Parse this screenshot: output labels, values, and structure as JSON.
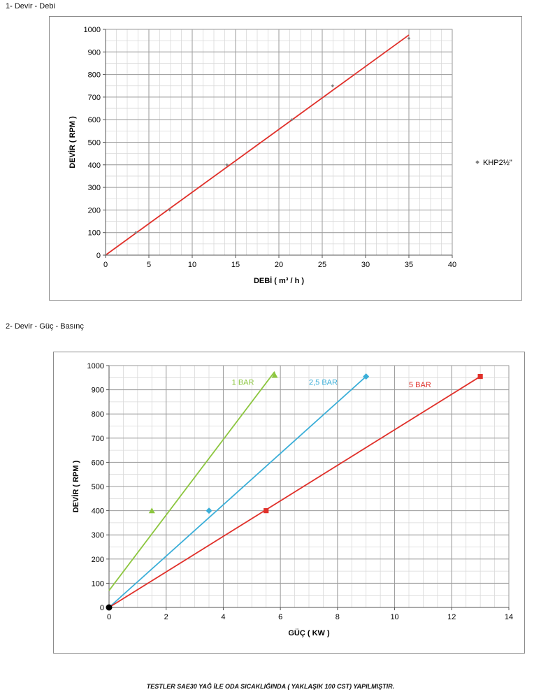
{
  "sections": {
    "s1": "1- Devir - Debi",
    "s2": "2- Devir - Güç - Basınç"
  },
  "footer": "TESTLER SAE30 YAĞ İLE ODA SICAKLIĞINDA ( YAKLAŞIK 100 CST) YAPILMIŞTIR.",
  "chart_data": [
    {
      "type": "scatter",
      "title": "",
      "xlabel": "DEBİ ( m³ / h )",
      "ylabel": "DEVİR ( RPM )",
      "xlim": [
        0,
        40
      ],
      "ylim": [
        0,
        1000
      ],
      "xticks": [
        0,
        5,
        10,
        15,
        20,
        25,
        30,
        35,
        40
      ],
      "yticks": [
        0,
        100,
        200,
        300,
        400,
        500,
        600,
        700,
        800,
        900,
        1000
      ],
      "grid": true,
      "legend": "right",
      "series": [
        {
          "name": "KHP2½\"",
          "color": "#7f7f7f",
          "marker": "diamond",
          "x": [
            0,
            3.5,
            7.4,
            14,
            21.5,
            26.2,
            35
          ],
          "y": [
            0,
            100,
            200,
            400,
            600,
            750,
            960
          ]
        }
      ],
      "trendlines": [
        {
          "color": "#e0302a",
          "x": [
            0,
            35
          ],
          "y": [
            0,
            975
          ]
        }
      ]
    },
    {
      "type": "scatter",
      "title": "",
      "xlabel": "GÜÇ ( KW )",
      "ylabel": "DEVİR ( RPM )",
      "xlim": [
        0,
        14
      ],
      "ylim": [
        0,
        1000
      ],
      "xticks": [
        0,
        2,
        4,
        6,
        8,
        10,
        12,
        14
      ],
      "yticks": [
        0,
        100,
        200,
        300,
        400,
        500,
        600,
        700,
        800,
        900,
        1000
      ],
      "grid": true,
      "series": [
        {
          "name": "1 BAR",
          "color": "#8cc63f",
          "marker": "triangle",
          "x": [
            0,
            1.5,
            5.8
          ],
          "y": [
            0,
            400,
            960
          ],
          "trend": {
            "x": [
              0,
              5.8
            ],
            "y": [
              70,
              975
            ]
          },
          "label_pos": {
            "x": 4.3,
            "y": 920
          }
        },
        {
          "name": "2,5 BAR",
          "color": "#3aaed8",
          "marker": "diamond",
          "x": [
            0,
            3.5,
            9
          ],
          "y": [
            0,
            400,
            955
          ],
          "trend": {
            "x": [
              0,
              9
            ],
            "y": [
              0,
              955
            ]
          },
          "label_pos": {
            "x": 7.0,
            "y": 920
          }
        },
        {
          "name": "5 BAR",
          "color": "#e0302a",
          "marker": "square",
          "x": [
            0,
            5.5,
            13
          ],
          "y": [
            0,
            400,
            955
          ],
          "trend": {
            "x": [
              0,
              13
            ],
            "y": [
              0,
              955
            ]
          },
          "label_pos": {
            "x": 10.5,
            "y": 910
          }
        }
      ]
    }
  ]
}
